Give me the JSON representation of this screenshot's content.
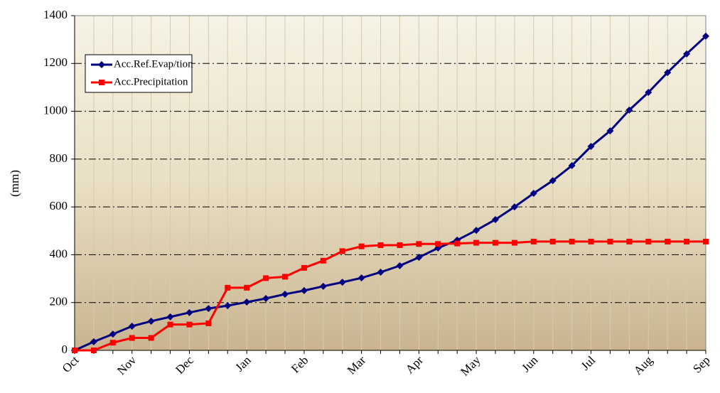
{
  "chart_data": {
    "type": "line",
    "y_label": "(mm)",
    "categories": [
      "Oct",
      null,
      null,
      "Nov",
      null,
      null,
      "Dec",
      null,
      null,
      "Jan",
      null,
      null,
      "Feb",
      null,
      null,
      "Mar",
      null,
      null,
      "Apr",
      null,
      null,
      "May",
      null,
      null,
      "Jun",
      null,
      null,
      "Jul",
      null,
      null,
      "Aug",
      null,
      null,
      "Sep"
    ],
    "series": [
      {
        "name": "Acc.Ref.Evap/tion",
        "color": "#000080",
        "marker": "diamond",
        "values": [
          0,
          36,
          68,
          101,
          122,
          140,
          158,
          175,
          187,
          202,
          217,
          235,
          250,
          268,
          285,
          303,
          327,
          354,
          389,
          428,
          461,
          502,
          547,
          600,
          657,
          710,
          773,
          853,
          918,
          1005,
          1079,
          1162,
          1240,
          1314
        ]
      },
      {
        "name": "Acc.Precipitation",
        "color": "#ff0000",
        "marker": "square",
        "values": [
          0,
          0,
          32,
          52,
          52,
          108,
          108,
          113,
          262,
          262,
          302,
          308,
          345,
          375,
          415,
          435,
          440,
          440,
          445,
          445,
          447,
          450,
          450,
          450,
          455,
          455,
          455,
          455,
          455,
          455,
          455,
          455,
          455,
          455
        ]
      }
    ],
    "ylim": [
      0,
      1400
    ],
    "yticks": [
      0,
      200,
      400,
      600,
      800,
      1000,
      1200,
      1400
    ],
    "grid": true,
    "legend": "upper left"
  }
}
